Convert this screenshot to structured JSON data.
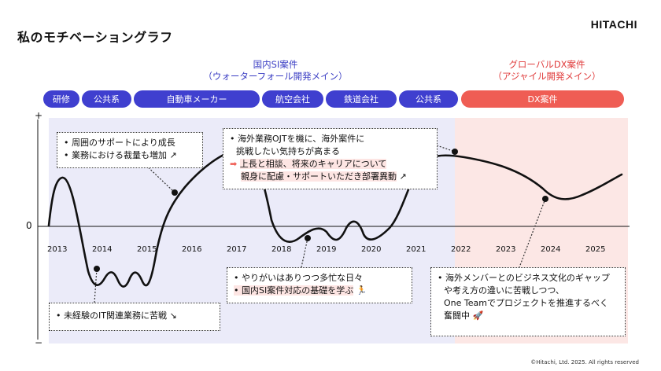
{
  "title": "私のモチベーショングラフ",
  "logo": "HITACHI",
  "groups": {
    "domestic": {
      "line1": "国内SI案件",
      "line2": "（ウォーターフォール開発メイン）",
      "color": "#3b3ec4"
    },
    "global": {
      "line1": "グローバルDX案件",
      "line2": "（アジャイル開発メイン）",
      "color": "#e03c3c"
    }
  },
  "phases": [
    {
      "label": "研修",
      "color": "#3f3fcf"
    },
    {
      "label": "公共系",
      "color": "#3f3fcf"
    },
    {
      "label": "自動車メーカー",
      "color": "#3f3fcf"
    },
    {
      "label": "航空会社",
      "color": "#3f3fcf"
    },
    {
      "label": "鉄道会社",
      "color": "#3f3fcf"
    },
    {
      "label": "公共系",
      "color": "#3f3fcf"
    },
    {
      "label": "DX案件",
      "color": "#ef5d54"
    }
  ],
  "axis": {
    "plus": "+",
    "minus": "−",
    "zero": "0"
  },
  "years": [
    "2013",
    "2014",
    "2015",
    "2016",
    "2017",
    "2018",
    "2019",
    "2020",
    "2021",
    "2022",
    "2023",
    "2024",
    "2025"
  ],
  "callouts": {
    "c1": {
      "line1": "• 周囲のサポートにより成長",
      "line2": "• 業務における裁量も増加"
    },
    "c2": {
      "line1": "• 未経験のIT関連業務に苦戦"
    },
    "c3": {
      "line1": "• 海外業務OJTを機に、海外案件に",
      "line2": "挑戦したい気持ちが高まる",
      "line3": "上長と相談、将来のキャリアについて",
      "line4": "親身に配慮・サポートいただき部署異動"
    },
    "c4": {
      "line1": "• やりがいはありつつ多忙な日々",
      "line2": "• 国内SI案件対応の基礎を学ぶ"
    },
    "c5": {
      "line1": "• 海外メンバーとのビジネス文化のギャップ",
      "line2": "や考え方の違いに苦戦しつつ、",
      "line3": "One Teamでプロジェクトを推進するべく",
      "line4": "奮闘中"
    }
  },
  "footer": "©Hitachi, Ltd. 2025. All rights reserved"
}
